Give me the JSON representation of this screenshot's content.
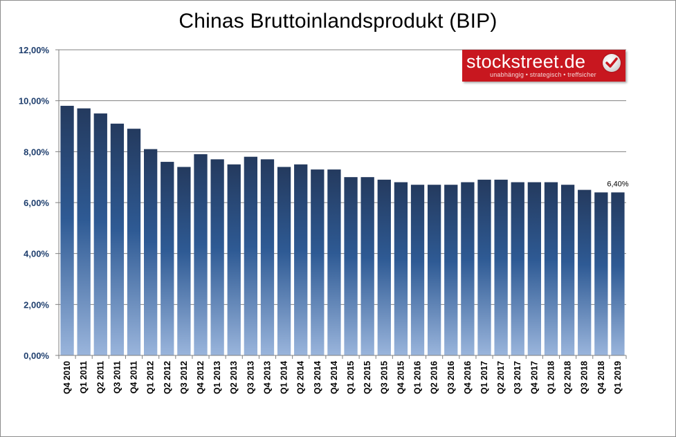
{
  "chart_data": {
    "type": "bar",
    "title": "Chinas Bruttoinlandsprodukt (BIP)",
    "categories": [
      "Q4 2010",
      "Q1 2011",
      "Q2 2011",
      "Q3 2011",
      "Q4 2011",
      "Q1 2012",
      "Q2 2012",
      "Q3 2012",
      "Q4 2012",
      "Q1 2013",
      "Q2 2013",
      "Q3 2013",
      "Q4 2013",
      "Q1 2014",
      "Q2 2014",
      "Q3 2014",
      "Q4 2014",
      "Q1 2015",
      "Q2 2015",
      "Q3 2015",
      "Q4 2015",
      "Q1 2016",
      "Q2 2016",
      "Q3 2016",
      "Q4 2016",
      "Q1 2017",
      "Q2 2017",
      "Q3 2017",
      "Q4 2017",
      "Q1 2018",
      "Q2 2018",
      "Q3 2018",
      "Q4 2018",
      "Q1 2019"
    ],
    "values": [
      9.8,
      9.7,
      9.5,
      9.1,
      8.9,
      8.1,
      7.6,
      7.4,
      7.9,
      7.7,
      7.5,
      7.8,
      7.7,
      7.4,
      7.5,
      7.3,
      7.3,
      7.0,
      7.0,
      6.9,
      6.8,
      6.7,
      6.7,
      6.7,
      6.8,
      6.9,
      6.9,
      6.8,
      6.8,
      6.8,
      6.7,
      6.5,
      6.4,
      6.4
    ],
    "ylim": [
      0,
      12
    ],
    "yticks": [
      "0,00%",
      "2,00%",
      "4,00%",
      "6,00%",
      "8,00%",
      "10,00%",
      "12,00%"
    ],
    "ytick_values": [
      0,
      2,
      4,
      6,
      8,
      10,
      12
    ],
    "data_labels": [
      {
        "index": 33,
        "text": "6,40%"
      }
    ],
    "grid": true,
    "colors": {
      "bar_top": "#243a5e",
      "bar_mid": "#2e5a94",
      "bar_bottom": "#9ab5dc",
      "axis_text": "#1f3f6e",
      "grid": "#7f7f7f"
    },
    "xlabel": "",
    "ylabel": ""
  },
  "logo": {
    "name": "stockstreet.de",
    "tagline": "unabhängig • strategisch • treffsicher",
    "color": "#c8171f",
    "icon": "checkmark-icon"
  }
}
